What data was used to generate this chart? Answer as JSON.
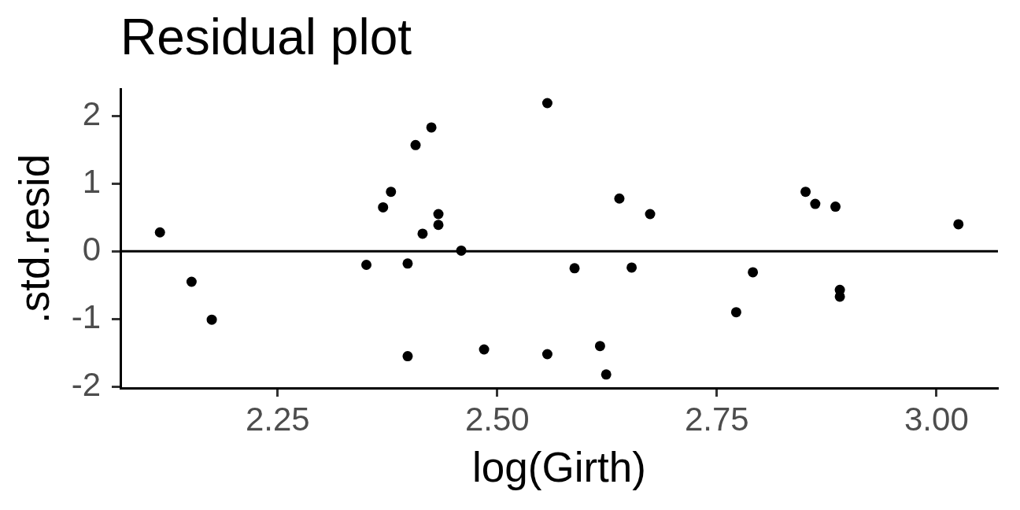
{
  "chart_data": {
    "type": "scatter",
    "title": "Residual plot",
    "xlabel": "log(Girth)",
    "ylabel": ".std.resid",
    "x": [
      2.116,
      2.152,
      2.175,
      2.351,
      2.37,
      2.379,
      2.398,
      2.398,
      2.407,
      2.415,
      2.425,
      2.433,
      2.433,
      2.459,
      2.485,
      2.557,
      2.557,
      2.588,
      2.617,
      2.624,
      2.639,
      2.653,
      2.674,
      2.772,
      2.791,
      2.851,
      2.862,
      2.885,
      2.89,
      2.89,
      3.025
    ],
    "values": [
      0.28,
      -0.45,
      -1.01,
      -0.2,
      0.65,
      0.88,
      -0.18,
      -1.55,
      1.57,
      0.26,
      1.83,
      0.55,
      0.39,
      0.01,
      -1.45,
      2.19,
      -1.52,
      -0.25,
      -1.4,
      -1.82,
      0.78,
      -0.24,
      0.55,
      -0.9,
      -0.31,
      0.88,
      0.7,
      0.66,
      -0.57,
      -0.67,
      0.4
    ],
    "color": "#000000",
    "marker": "circle",
    "xlim": [
      2.071,
      3.07
    ],
    "ylim": [
      -2.02,
      2.39
    ],
    "xticks": [
      2.25,
      {
        "value": 2.5,
        "label": "2.50"
      },
      2.75,
      {
        "value": 3,
        "label": "3.00"
      }
    ],
    "yticks": [
      -2,
      -1,
      0,
      1,
      2
    ],
    "grid": false,
    "legend": false,
    "ref_lines": [
      {
        "axis": "y",
        "value": 0,
        "color": "#000000"
      }
    ]
  }
}
